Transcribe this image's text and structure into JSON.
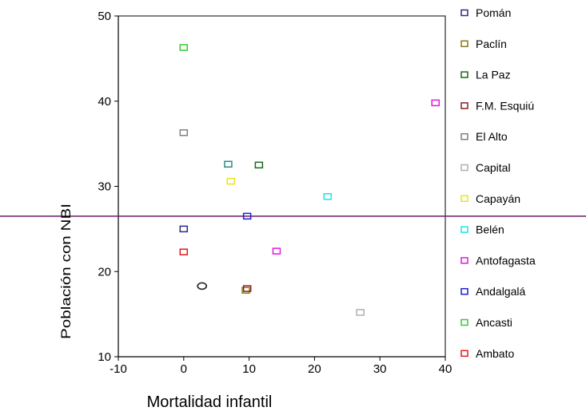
{
  "chart_data": {
    "type": "scatter",
    "xlabel": "Mortalidad infantil",
    "ylabel": "Población con NBI",
    "xlim": [
      -10,
      40
    ],
    "ylim": [
      10,
      50
    ],
    "xticks": [
      -10,
      0,
      10,
      20,
      30,
      40
    ],
    "yticks": [
      10,
      20,
      30,
      40,
      50
    ],
    "reference_line_y": 26.5,
    "reference_line_color": "#6b1d6b",
    "grid": false,
    "legend_position": "right",
    "series": [
      {
        "name": "Pomán",
        "color": "#2b2b8c",
        "points": [
          [
            0,
            25.0
          ]
        ]
      },
      {
        "name": "Paclín",
        "color": "#8c7a1a",
        "points": [
          [
            9.5,
            17.8
          ]
        ]
      },
      {
        "name": "La Paz",
        "color": "#1a6b1a",
        "points": [
          [
            11.5,
            32.5
          ]
        ]
      },
      {
        "name": "F.M. Esquiú",
        "color": "#8c2020",
        "points": [
          [
            9.7,
            18.0
          ]
        ]
      },
      {
        "name": "El Alto",
        "color": "#808080",
        "points": [
          [
            0,
            36.3
          ]
        ]
      },
      {
        "name": "Capital",
        "color": "#b0b0b0",
        "points": [
          [
            27.0,
            15.2
          ]
        ]
      },
      {
        "name": "Capayán",
        "color": "#e6e61a",
        "points": [
          [
            7.2,
            30.6
          ]
        ]
      },
      {
        "name": "Belén",
        "color": "#1ae6e6",
        "points": [
          [
            22.0,
            28.8
          ]
        ]
      },
      {
        "name": "Antofagasta",
        "color": "#e01ae0",
        "points": [
          [
            14.2,
            22.4
          ],
          [
            38.5,
            39.8
          ]
        ]
      },
      {
        "name": "Andalgalá",
        "color": "#2020d0",
        "points": [
          [
            9.7,
            26.5
          ]
        ]
      },
      {
        "name": "Ancasti",
        "color": "#33cc33",
        "points": [
          [
            0,
            46.3
          ]
        ]
      },
      {
        "name": "Ambato",
        "color": "#e61a1a",
        "points": [
          [
            0,
            22.3
          ]
        ]
      }
    ],
    "extra_points": [
      {
        "marker": "circle",
        "color": "#333333",
        "points": [
          [
            2.8,
            18.3
          ]
        ]
      },
      {
        "marker": "square",
        "color": "#2a8c8c",
        "points": [
          [
            6.8,
            32.6
          ]
        ]
      }
    ]
  }
}
